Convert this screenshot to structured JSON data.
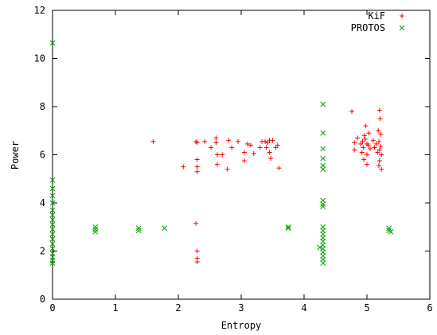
{
  "chart_data": {
    "type": "scatter",
    "xlabel": "Entropy",
    "ylabel": "Power",
    "xlim": [
      0,
      6
    ],
    "ylim": [
      0,
      12
    ],
    "x_ticks": [
      "0",
      "1",
      "2",
      "3",
      "4",
      "5",
      "6"
    ],
    "y_ticks": [
      "0",
      "2",
      "4",
      "6",
      "8",
      "10",
      "12"
    ],
    "grid": false,
    "legend_position": "top-right",
    "series": [
      {
        "name": "KiF",
        "marker": "plus",
        "color": "#ff0000",
        "points": [
          [
            1.6,
            6.55
          ],
          [
            2.08,
            5.5
          ],
          [
            2.28,
            6.55
          ],
          [
            2.3,
            6.5
          ],
          [
            2.3,
            5.8
          ],
          [
            2.3,
            5.5
          ],
          [
            2.3,
            5.3
          ],
          [
            2.28,
            3.15
          ],
          [
            2.3,
            2.0
          ],
          [
            2.3,
            1.7
          ],
          [
            2.3,
            1.55
          ],
          [
            2.42,
            6.55
          ],
          [
            2.52,
            6.3
          ],
          [
            2.6,
            6.5
          ],
          [
            2.6,
            6.7
          ],
          [
            2.62,
            6.0
          ],
          [
            2.62,
            5.6
          ],
          [
            2.7,
            6.0
          ],
          [
            2.78,
            5.4
          ],
          [
            2.8,
            6.6
          ],
          [
            2.85,
            6.3
          ],
          [
            2.95,
            6.55
          ],
          [
            3.05,
            6.1
          ],
          [
            3.05,
            5.75
          ],
          [
            3.1,
            6.45
          ],
          [
            3.15,
            6.4
          ],
          [
            3.2,
            6.05
          ],
          [
            3.3,
            6.3
          ],
          [
            3.33,
            6.55
          ],
          [
            3.38,
            6.55
          ],
          [
            3.4,
            6.3
          ],
          [
            3.42,
            6.5
          ],
          [
            3.45,
            6.6
          ],
          [
            3.45,
            6.1
          ],
          [
            3.47,
            5.85
          ],
          [
            3.5,
            6.6
          ],
          [
            3.55,
            6.3
          ],
          [
            3.58,
            6.4
          ],
          [
            3.6,
            5.45
          ],
          [
            4.76,
            7.8
          ],
          [
            4.8,
            6.5
          ],
          [
            4.8,
            6.2
          ],
          [
            4.85,
            6.7
          ],
          [
            4.9,
            6.45
          ],
          [
            4.92,
            6.1
          ],
          [
            4.93,
            6.55
          ],
          [
            4.94,
            6.3
          ],
          [
            4.95,
            5.8
          ],
          [
            4.96,
            6.8
          ],
          [
            4.97,
            6.65
          ],
          [
            4.98,
            7.2
          ],
          [
            5.0,
            6.45
          ],
          [
            5.0,
            6.0
          ],
          [
            5.0,
            5.6
          ],
          [
            5.02,
            6.4
          ],
          [
            5.03,
            6.9
          ],
          [
            5.05,
            6.25
          ],
          [
            5.1,
            6.6
          ],
          [
            5.12,
            6.3
          ],
          [
            5.15,
            6.45
          ],
          [
            5.17,
            6.1
          ],
          [
            5.18,
            7.0
          ],
          [
            5.19,
            6.55
          ],
          [
            5.19,
            5.55
          ],
          [
            5.2,
            5.75
          ],
          [
            5.2,
            6.2
          ],
          [
            5.2,
            7.85
          ],
          [
            5.21,
            7.5
          ],
          [
            5.22,
            6.85
          ],
          [
            5.22,
            6.35
          ],
          [
            5.23,
            5.4
          ],
          [
            5.23,
            6.0
          ]
        ]
      },
      {
        "name": "PROTOS",
        "marker": "x",
        "color": "#00a000",
        "points": [
          [
            0.0,
            10.65
          ],
          [
            0.0,
            4.95
          ],
          [
            0.0,
            4.6
          ],
          [
            0.0,
            4.3
          ],
          [
            0.0,
            4.0
          ],
          [
            0.0,
            3.7
          ],
          [
            0.0,
            3.5
          ],
          [
            0.0,
            3.3
          ],
          [
            0.0,
            3.1
          ],
          [
            0.0,
            2.9
          ],
          [
            0.0,
            2.7
          ],
          [
            0.0,
            2.5
          ],
          [
            0.0,
            2.3
          ],
          [
            0.0,
            2.1
          ],
          [
            0.0,
            1.9
          ],
          [
            0.0,
            1.75
          ],
          [
            0.0,
            1.6
          ],
          [
            0.0,
            1.5
          ],
          [
            0.68,
            3.0
          ],
          [
            0.68,
            2.9
          ],
          [
            0.68,
            2.8
          ],
          [
            1.37,
            2.95
          ],
          [
            1.37,
            2.85
          ],
          [
            1.78,
            2.95
          ],
          [
            3.75,
            3.0
          ],
          [
            3.75,
            2.95
          ],
          [
            4.25,
            2.15
          ],
          [
            4.3,
            8.1
          ],
          [
            4.3,
            6.9
          ],
          [
            4.3,
            6.25
          ],
          [
            4.3,
            5.85
          ],
          [
            4.3,
            5.55
          ],
          [
            4.3,
            5.4
          ],
          [
            4.3,
            4.1
          ],
          [
            4.3,
            3.95
          ],
          [
            4.3,
            3.85
          ],
          [
            4.3,
            3.0
          ],
          [
            4.3,
            2.85
          ],
          [
            4.3,
            2.7
          ],
          [
            4.3,
            2.55
          ],
          [
            4.3,
            2.4
          ],
          [
            4.3,
            2.25
          ],
          [
            4.3,
            2.1
          ],
          [
            4.3,
            1.95
          ],
          [
            4.3,
            1.8
          ],
          [
            4.3,
            1.65
          ],
          [
            4.3,
            1.5
          ],
          [
            5.35,
            2.95
          ],
          [
            5.35,
            2.85
          ],
          [
            5.38,
            2.8
          ]
        ]
      }
    ]
  }
}
